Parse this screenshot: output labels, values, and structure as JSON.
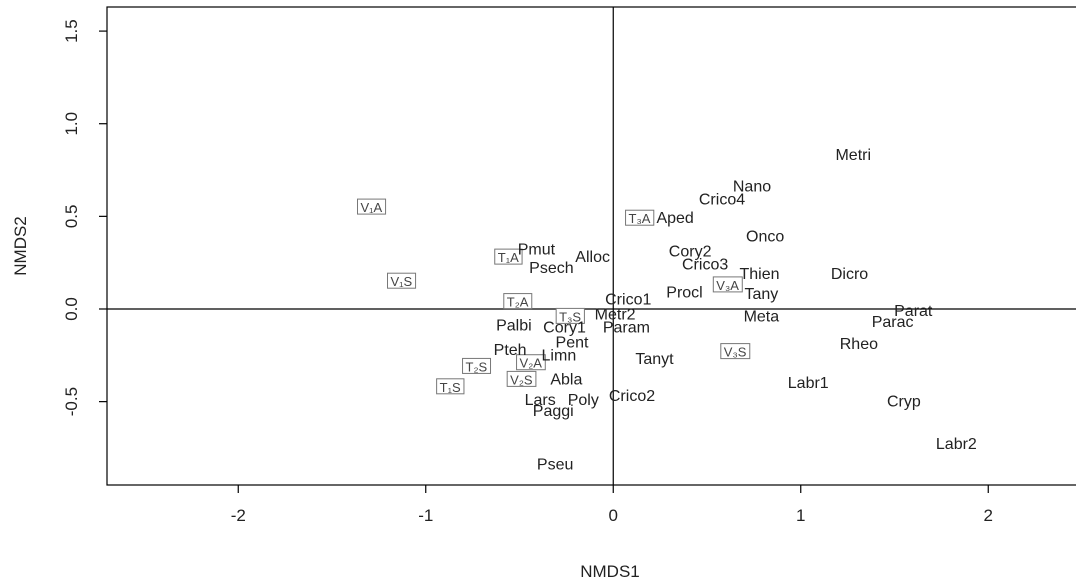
{
  "chart_data": {
    "type": "scatter",
    "xlabel": "NMDS1",
    "ylabel": "NMDS2",
    "xlim": [
      -2.7,
      2.5
    ],
    "ylim": [
      -0.95,
      1.63
    ],
    "x_ticks": [
      -2,
      -1,
      0,
      1,
      2
    ],
    "x_tick_labels": [
      "-2",
      "-1",
      "0",
      "1",
      "2"
    ],
    "y_ticks": [
      -0.5,
      0.0,
      0.5,
      1.0,
      1.5
    ],
    "y_tick_labels": [
      "-0.5",
      "0.0",
      "0.5",
      "1.0",
      "1.5"
    ],
    "reference_lines": {
      "x": 0,
      "y": 0
    },
    "species": [
      {
        "label": "Metri",
        "x": 1.28,
        "y": 0.83
      },
      {
        "label": "Nano",
        "x": 0.74,
        "y": 0.66
      },
      {
        "label": "Crico4",
        "x": 0.58,
        "y": 0.59
      },
      {
        "label": "Aped",
        "x": 0.33,
        "y": 0.49
      },
      {
        "label": "Onco",
        "x": 0.81,
        "y": 0.39
      },
      {
        "label": "Pmut",
        "x": -0.41,
        "y": 0.32
      },
      {
        "label": "Alloc",
        "x": -0.11,
        "y": 0.28
      },
      {
        "label": "Psech",
        "x": -0.33,
        "y": 0.22
      },
      {
        "label": "Cory2",
        "x": 0.41,
        "y": 0.31
      },
      {
        "label": "Crico3",
        "x": 0.49,
        "y": 0.24
      },
      {
        "label": "Thien",
        "x": 0.78,
        "y": 0.19
      },
      {
        "label": "Dicro",
        "x": 1.26,
        "y": 0.19
      },
      {
        "label": "Procl",
        "x": 0.38,
        "y": 0.09
      },
      {
        "label": "Tany",
        "x": 0.79,
        "y": 0.08
      },
      {
        "label": "Crico1",
        "x": 0.08,
        "y": 0.05
      },
      {
        "label": "Parat",
        "x": 1.6,
        "y": -0.01
      },
      {
        "label": "Metr2",
        "x": 0.01,
        "y": -0.03
      },
      {
        "label": "Meta",
        "x": 0.79,
        "y": -0.04
      },
      {
        "label": "Parac",
        "x": 1.49,
        "y": -0.07
      },
      {
        "label": "Palbi",
        "x": -0.53,
        "y": -0.09
      },
      {
        "label": "Cory1",
        "x": -0.26,
        "y": -0.1
      },
      {
        "label": "Param",
        "x": 0.07,
        "y": -0.1
      },
      {
        "label": "Pent",
        "x": -0.22,
        "y": -0.18
      },
      {
        "label": "Rheo",
        "x": 1.31,
        "y": -0.19
      },
      {
        "label": "Pteh",
        "x": -0.55,
        "y": -0.22
      },
      {
        "label": "Limn",
        "x": -0.29,
        "y": -0.25
      },
      {
        "label": "Tanyt",
        "x": 0.22,
        "y": -0.27
      },
      {
        "label": "Abla",
        "x": -0.25,
        "y": -0.38
      },
      {
        "label": "Labr1",
        "x": 1.04,
        "y": -0.4
      },
      {
        "label": "Lars",
        "x": -0.39,
        "y": -0.49
      },
      {
        "label": "Poly",
        "x": -0.16,
        "y": -0.49
      },
      {
        "label": "Crico2",
        "x": 0.1,
        "y": -0.47
      },
      {
        "label": "Cryp",
        "x": 1.55,
        "y": -0.5
      },
      {
        "label": "Paggi",
        "x": -0.32,
        "y": -0.55
      },
      {
        "label": "Labr2",
        "x": 1.83,
        "y": -0.73
      },
      {
        "label": "Pseu",
        "x": -0.31,
        "y": -0.84
      }
    ],
    "sites": [
      {
        "label": "V₁A",
        "x": -1.29,
        "y": 0.55
      },
      {
        "label": "V₁S",
        "x": -1.13,
        "y": 0.15
      },
      {
        "label": "T₁A",
        "x": -0.56,
        "y": 0.28
      },
      {
        "label": "T₃A",
        "x": 0.14,
        "y": 0.49
      },
      {
        "label": "T₂A",
        "x": -0.51,
        "y": 0.04
      },
      {
        "label": "T₃S",
        "x": -0.23,
        "y": -0.04
      },
      {
        "label": "V₃A",
        "x": 0.61,
        "y": 0.13
      },
      {
        "label": "V₃S",
        "x": 0.65,
        "y": -0.23
      },
      {
        "label": "T₂S",
        "x": -0.73,
        "y": -0.31
      },
      {
        "label": "V₂A",
        "x": -0.44,
        "y": -0.29
      },
      {
        "label": "V₂S",
        "x": -0.49,
        "y": -0.38
      },
      {
        "label": "T₁S",
        "x": -0.87,
        "y": -0.42
      }
    ]
  }
}
